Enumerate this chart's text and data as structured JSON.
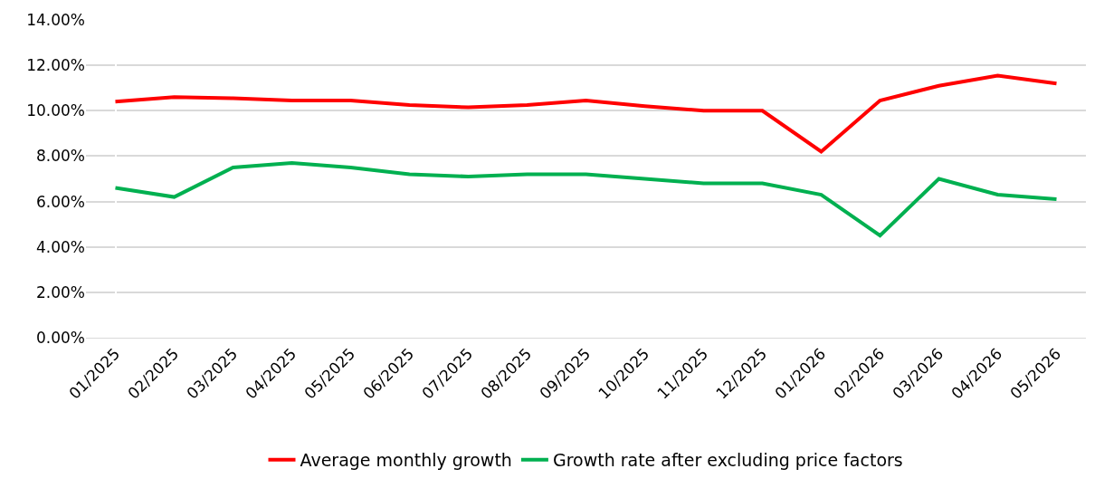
{
  "chart_data": {
    "type": "line",
    "categories": [
      "01/2025",
      "02/2025",
      "03/2025",
      "04/2025",
      "05/2025",
      "06/2025",
      "07/2025",
      "08/2025",
      "09/2025",
      "10/2025",
      "11/2025",
      "12/2025",
      "01/2026",
      "02/2026",
      "03/2026",
      "04/2026",
      "05/2026"
    ],
    "series": [
      {
        "name": "Average monthly growth",
        "color": "#ff0000",
        "values": [
          10.4,
          10.6,
          10.55,
          10.45,
          10.45,
          10.25,
          10.15,
          10.25,
          10.45,
          10.2,
          10.0,
          10.0,
          8.2,
          10.45,
          11.1,
          11.55,
          11.2
        ]
      },
      {
        "name": "Growth rate after excluding price factors",
        "color": "#00b050",
        "values": [
          6.6,
          6.2,
          7.5,
          7.7,
          7.5,
          7.2,
          7.1,
          7.2,
          7.2,
          7.0,
          6.8,
          6.8,
          6.3,
          4.5,
          7.0,
          6.3,
          6.1
        ]
      }
    ],
    "ylim": [
      0,
      14
    ],
    "yticks": [
      {
        "value": 0,
        "label": "0.00%"
      },
      {
        "value": 2,
        "label": "2.00%"
      },
      {
        "value": 4,
        "label": "4.00%"
      },
      {
        "value": 6,
        "label": "6.00%"
      },
      {
        "value": 8,
        "label": "8.00%"
      },
      {
        "value": 10,
        "label": "10.00%"
      },
      {
        "value": 12,
        "label": "12.00%"
      },
      {
        "value": 14,
        "label": "14.00%"
      }
    ],
    "grid": "y",
    "legend": "bottom",
    "marker": "none",
    "line_style": "solid"
  }
}
